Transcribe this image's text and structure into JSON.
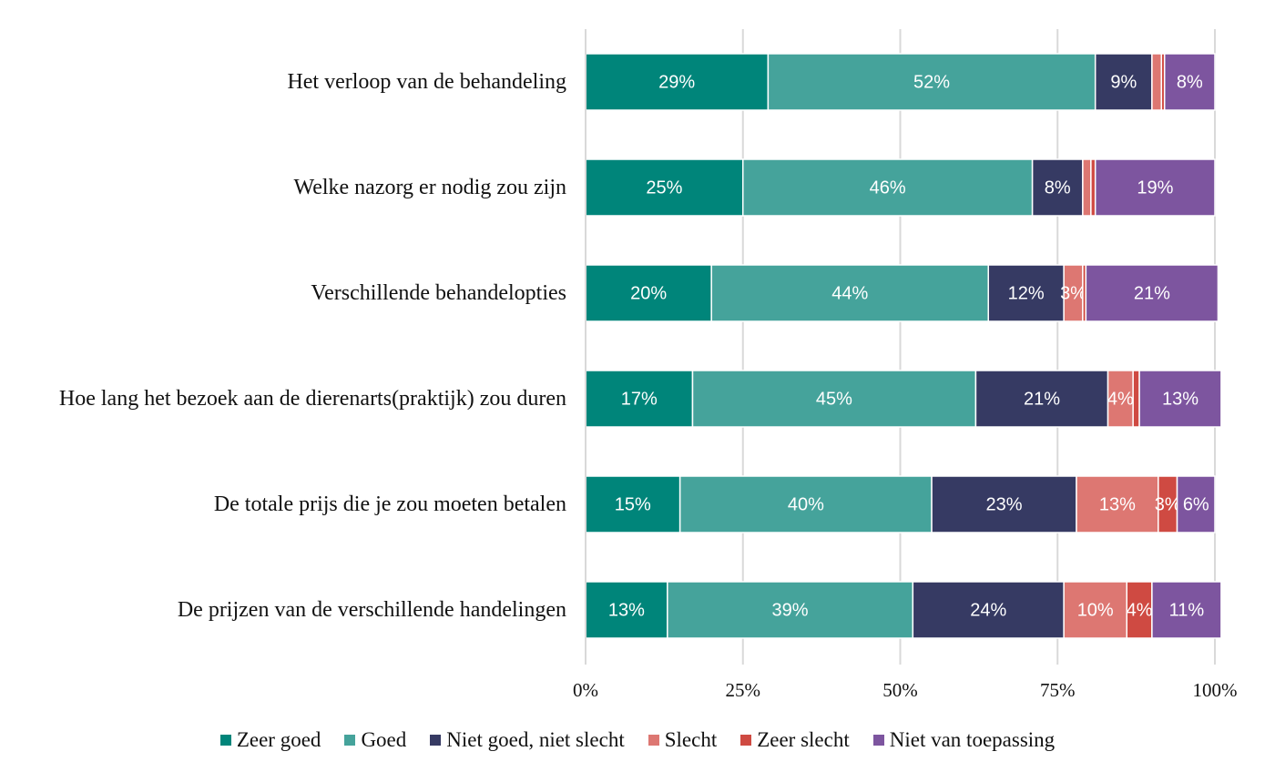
{
  "chart_data": {
    "type": "stacked-bar-horizontal",
    "categories": [
      "Het verloop van de behandeling",
      "Welke nazorg er nodig zou zijn",
      "Verschillende behandelopties",
      "Hoe lang het bezoek aan de dierenarts(praktijk) zou duren",
      "De totale prijs die je zou moeten betalen",
      "De prijzen van de verschillende handelingen"
    ],
    "series": [
      {
        "name": "Zeer goed",
        "color": "#00857a",
        "values": [
          29,
          25,
          20,
          17,
          15,
          13
        ],
        "value_labels": [
          "29%",
          "25%",
          "20%",
          "17%",
          "15%",
          "13%"
        ]
      },
      {
        "name": "Goed",
        "color": "#45a39b",
        "values": [
          52,
          46,
          44,
          45,
          40,
          39
        ],
        "value_labels": [
          "52%",
          "46%",
          "44%",
          "45%",
          "40%",
          "39%"
        ]
      },
      {
        "name": "Niet goed, niet slecht",
        "color": "#363a63",
        "values": [
          9,
          8,
          12,
          21,
          23,
          24
        ],
        "value_labels": [
          "9%",
          "8%",
          "12%",
          "21%",
          "23%",
          "24%"
        ]
      },
      {
        "name": "Slecht",
        "color": "#dd7772",
        "values": [
          1.5,
          1.3,
          3,
          4,
          13,
          10
        ],
        "value_labels": [
          null,
          null,
          "3%",
          "4%",
          "13%",
          "10%"
        ]
      },
      {
        "name": "Zeer slecht",
        "color": "#cf4a42",
        "values": [
          0.5,
          0.7,
          0.5,
          1,
          3,
          4
        ],
        "value_labels": [
          null,
          null,
          null,
          null,
          "3%",
          "4%"
        ]
      },
      {
        "name": "Niet van toepassing",
        "color": "#7d559f",
        "values": [
          8,
          19,
          21,
          13,
          6,
          11
        ],
        "value_labels": [
          "8%",
          "19%",
          "21%",
          "13%",
          "6%",
          "11%"
        ]
      }
    ],
    "xlim": [
      0,
      100
    ],
    "xticks": [
      {
        "value": 0,
        "label": "0%"
      },
      {
        "value": 25,
        "label": "25%"
      },
      {
        "value": 50,
        "label": "50%"
      },
      {
        "value": 75,
        "label": "75%"
      },
      {
        "value": 100,
        "label": "100%"
      }
    ],
    "grid": true,
    "legend": "bottom"
  }
}
